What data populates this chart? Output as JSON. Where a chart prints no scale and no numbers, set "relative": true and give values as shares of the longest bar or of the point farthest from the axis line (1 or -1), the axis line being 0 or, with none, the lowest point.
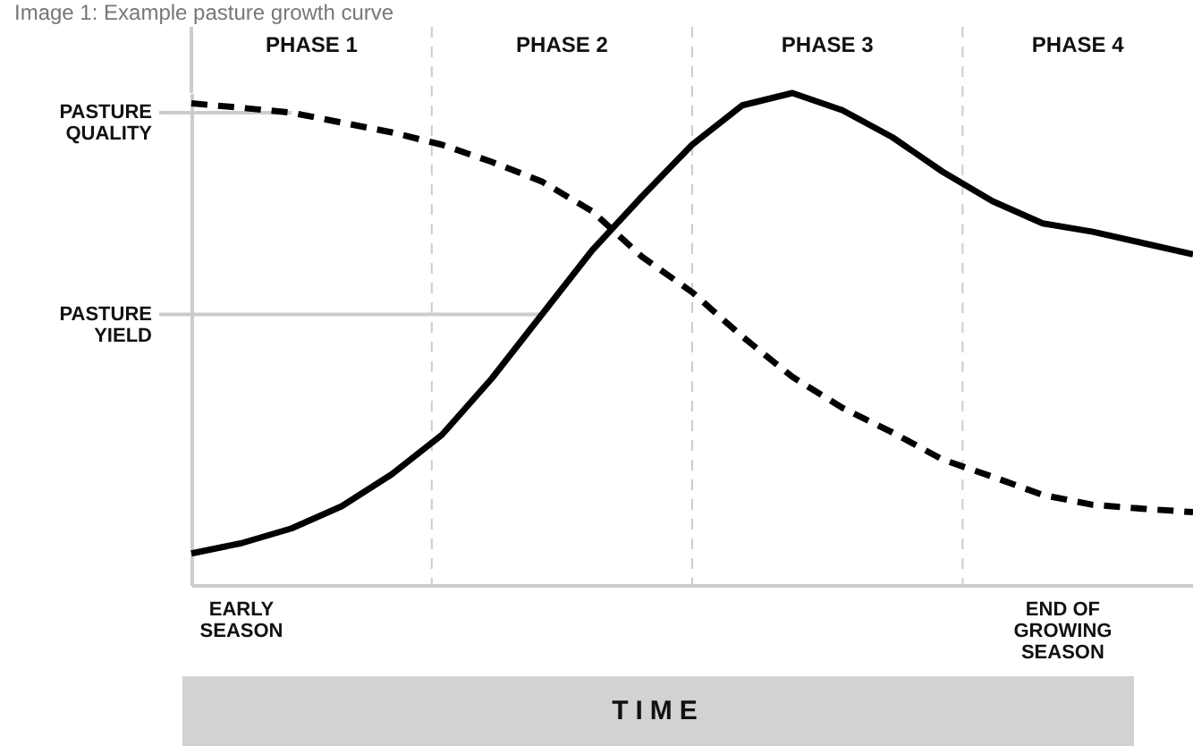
{
  "chart_data": {
    "type": "line",
    "title": "Image 1: Example pasture growth curve",
    "xlabel": "TIME",
    "relative": true,
    "annotations": [
      "PHASE 1",
      "PHASE 2",
      "PHASE 3",
      "PHASE 4",
      "EARLY SEASON",
      "END OF GROWING SEASON"
    ],
    "categories": [
      null,
      null,
      null,
      null,
      null,
      null,
      null,
      null,
      null,
      null,
      null,
      null,
      null,
      null,
      null,
      null,
      null,
      null,
      null,
      null,
      null
    ],
    "series": [
      {
        "name": "PASTURE QUALITY",
        "color": "#000000",
        "line_style": "dashed",
        "values": [
          0.979,
          0.97,
          0.96,
          0.94,
          0.92,
          0.895,
          0.86,
          0.82,
          0.76,
          0.667,
          0.595,
          0.505,
          0.423,
          0.36,
          0.31,
          0.255,
          0.22,
          0.183,
          0.163,
          0.155,
          0.148
        ]
      },
      {
        "name": "PASTURE YIELD",
        "color": "#000000",
        "line_style": "solid",
        "values": [
          0.064,
          0.085,
          0.115,
          0.16,
          0.225,
          0.305,
          0.42,
          0.55,
          0.68,
          0.79,
          0.895,
          0.975,
          1.0,
          0.965,
          0.91,
          0.84,
          0.78,
          0.735,
          0.718,
          0.695,
          0.672
        ]
      }
    ]
  }
}
